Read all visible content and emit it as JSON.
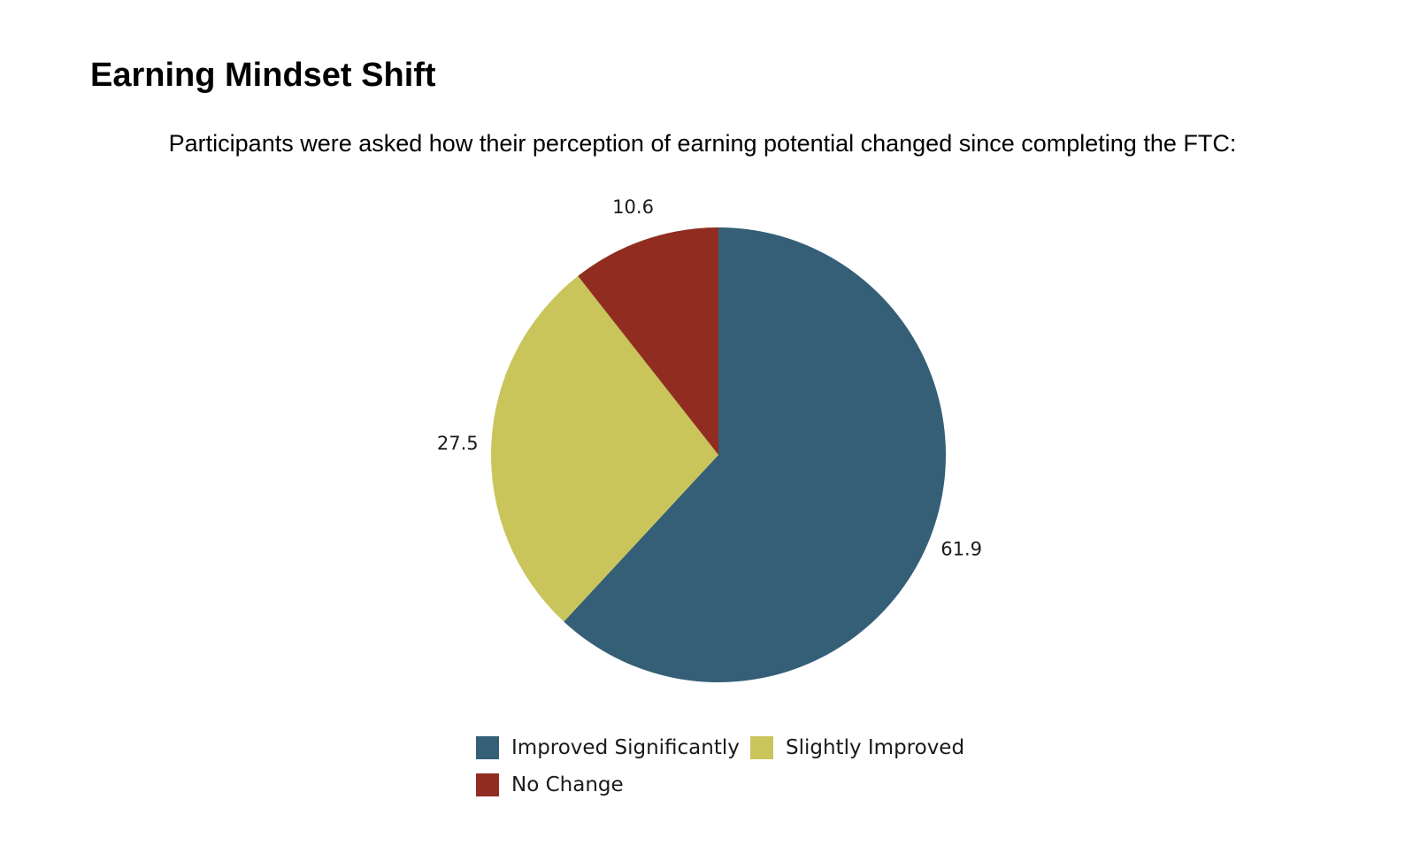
{
  "title": "Earning Mindset Shift",
  "subtitle": "Participants were asked how their perception of earning potential changed since completing the FTC:",
  "chart_data": {
    "type": "pie",
    "categories": [
      "Improved Significantly",
      "Slightly Improved",
      "No Change"
    ],
    "values": [
      61.9,
      27.5,
      10.6
    ],
    "value_labels": [
      "61.9",
      "27.5",
      "10.6"
    ],
    "colors": [
      "#355f77",
      "#c9c55b",
      "#902d20"
    ],
    "start": "12 o'clock",
    "direction": "clockwise",
    "legend_position": "bottom"
  }
}
